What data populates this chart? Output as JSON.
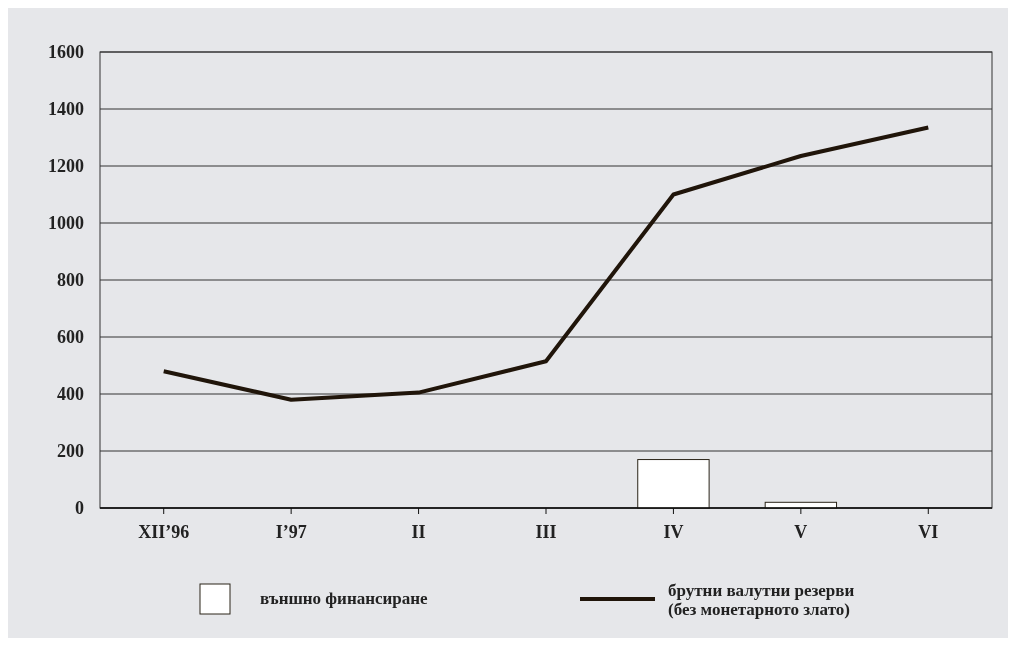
{
  "chart_data": {
    "type": "bar",
    "categories": [
      "XII’96",
      "I’97",
      "II",
      "III",
      "IV",
      "V",
      "VI"
    ],
    "series": [
      {
        "name": "външно финансиране",
        "color": "#ffffff",
        "values": [
          null,
          null,
          null,
          null,
          170,
          20,
          null
        ]
      },
      {
        "name": "брутни валутни резерви\n(без монетарното злато)",
        "type": "line",
        "color": "#20150a",
        "values": [
          480,
          380,
          405,
          515,
          1100,
          1235,
          1335
        ]
      }
    ],
    "ylim": [
      0,
      1600
    ],
    "yticks": [
      0,
      200,
      400,
      600,
      800,
      1000,
      1200,
      1400,
      1600
    ],
    "grid": "y",
    "legend": "bottom"
  }
}
